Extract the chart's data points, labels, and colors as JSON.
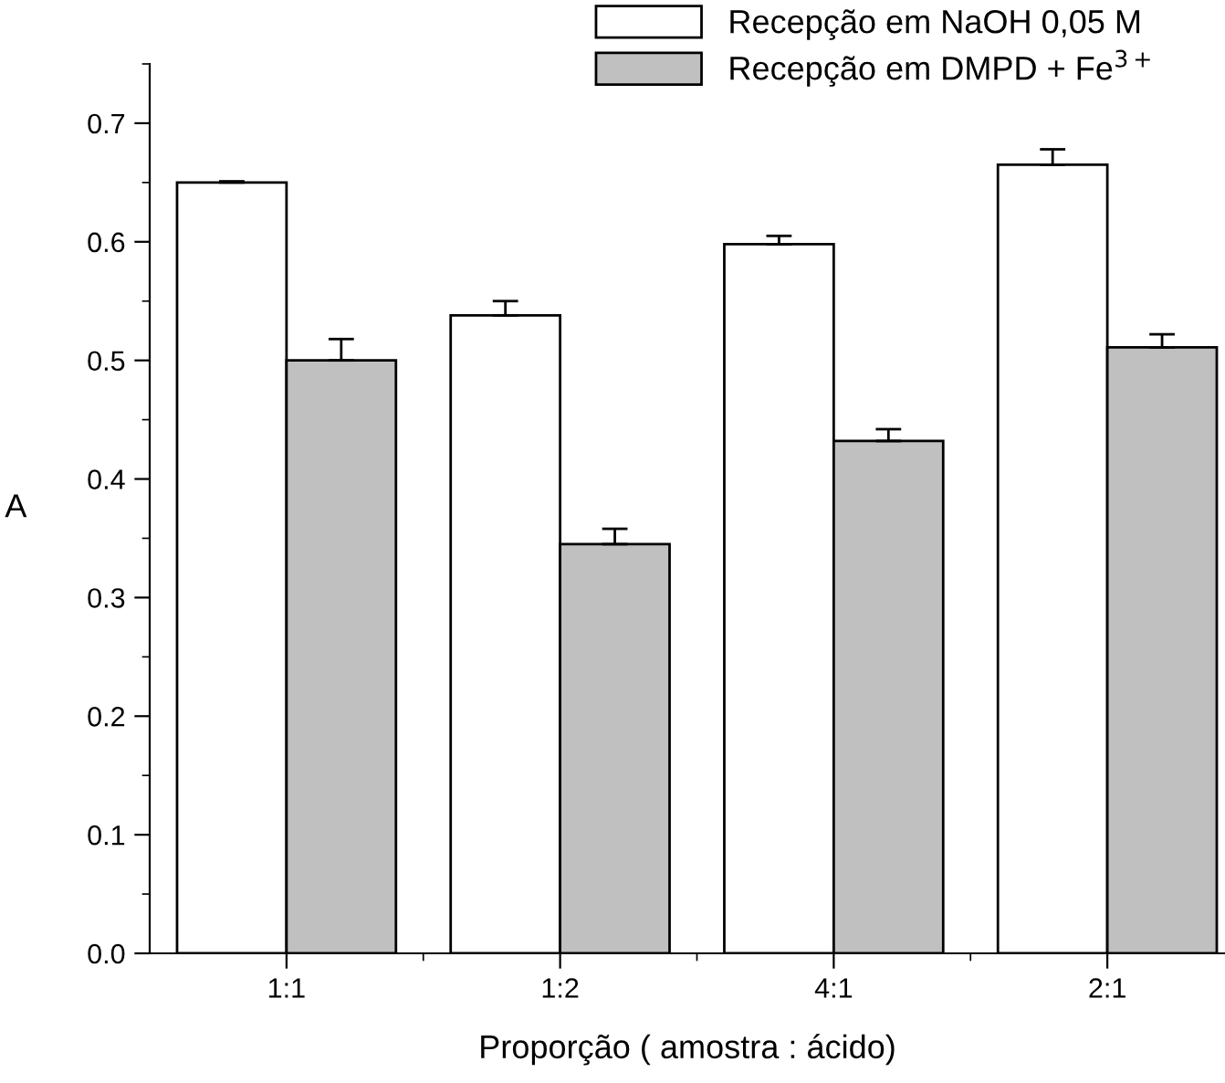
{
  "chart_data": {
    "type": "bar",
    "xlabel": "Proporção ( amostra : ácido)",
    "ylabel": "A",
    "categories": [
      "1:1",
      "1:2",
      "4:1",
      "2:1"
    ],
    "series": [
      {
        "name": "Recepção em NaOH 0,05 M",
        "color": "#ffffff",
        "values": [
          0.65,
          0.538,
          0.598,
          0.665
        ],
        "errors": [
          0.001,
          0.012,
          0.007,
          0.013
        ]
      },
      {
        "name": "Recepção em DMPD + Fe$^{3+}$",
        "color": "#c0c0c0",
        "values": [
          0.5,
          0.345,
          0.432,
          0.511
        ],
        "errors": [
          0.018,
          0.013,
          0.01,
          0.011
        ]
      }
    ],
    "ylim": [
      0,
      0.75
    ],
    "yticks": [
      {
        "value": 0.0,
        "label": "0.0"
      },
      0.1,
      0.2,
      0.3,
      0.4,
      0.5,
      0.6,
      0.7
    ],
    "grid": false,
    "legend": "top"
  }
}
